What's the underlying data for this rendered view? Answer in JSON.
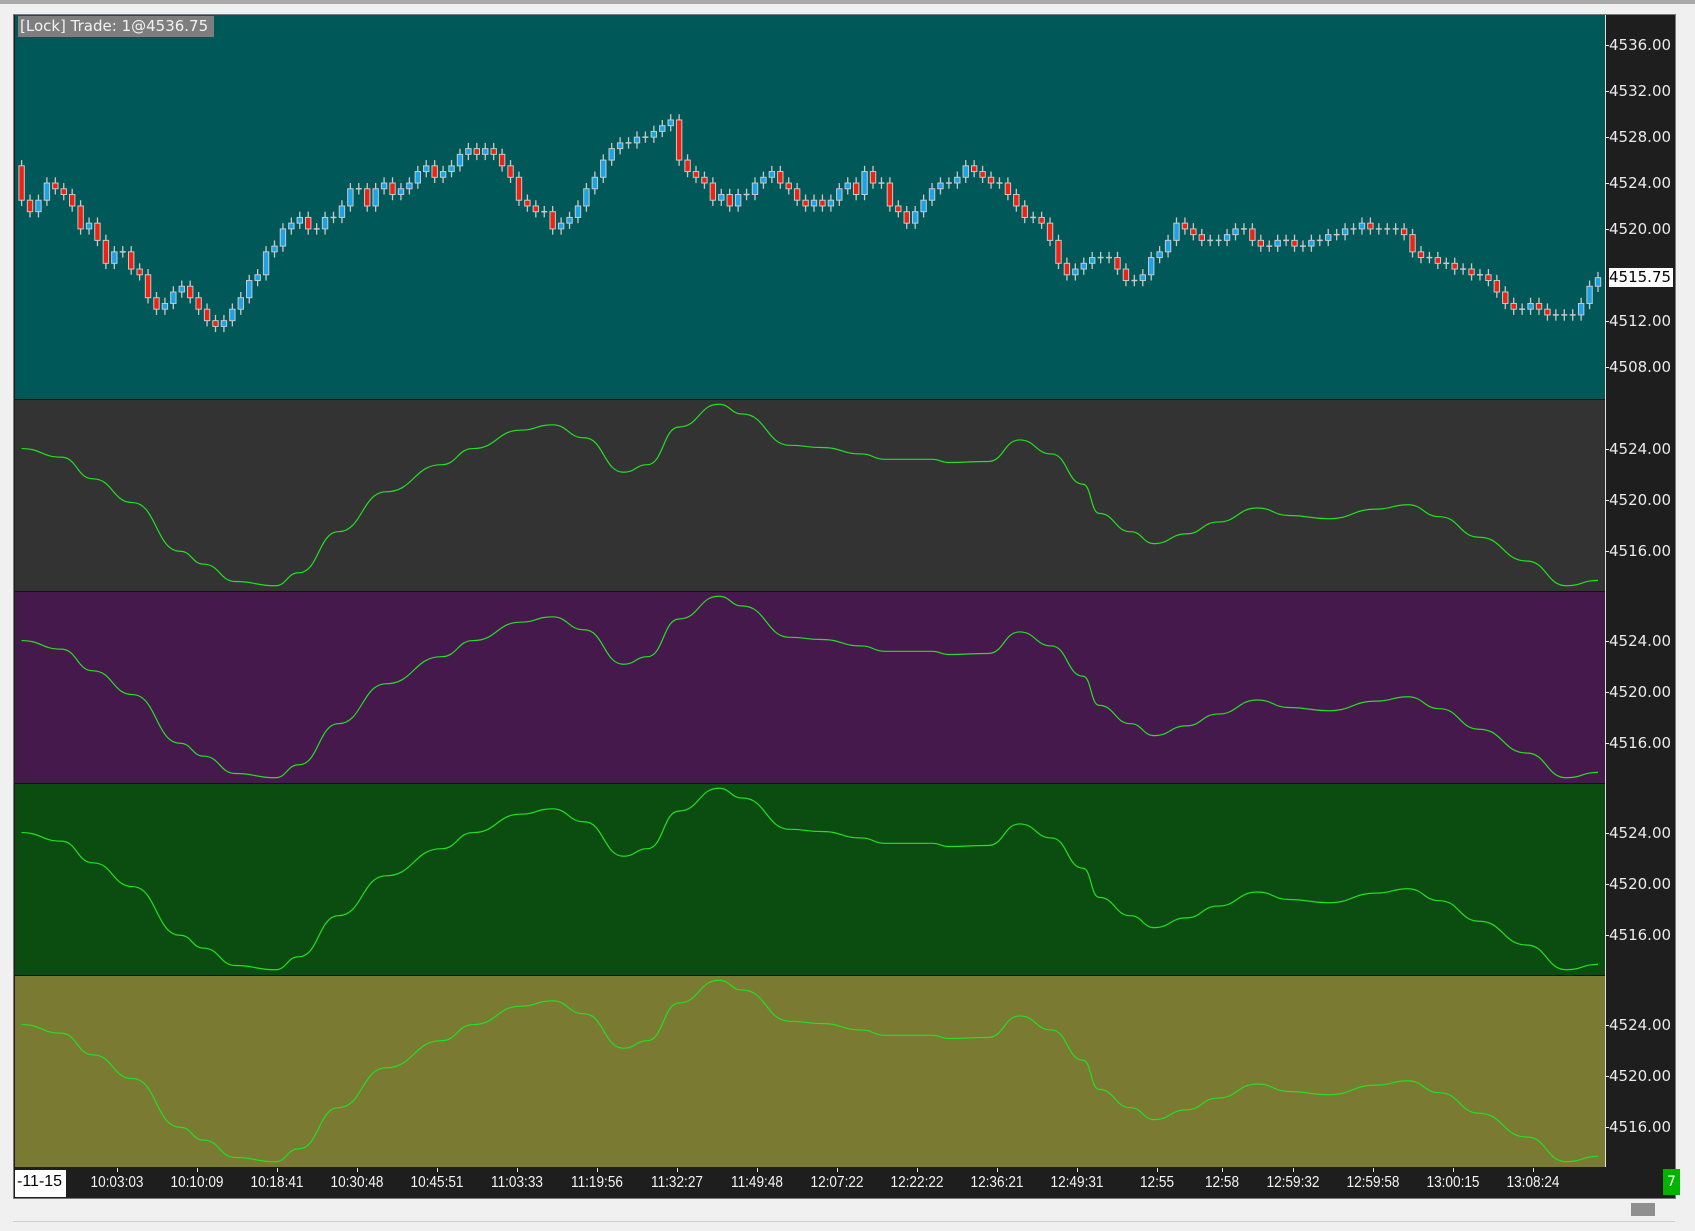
{
  "header": {
    "lock_label": "[Lock] Trade: 1@4536.75"
  },
  "colors": {
    "panel_backgrounds": [
      "#005858",
      "#333333",
      "#46194c",
      "#0b4d10",
      "#7a7a32"
    ],
    "candle_up": "#1aa3e8",
    "candle_down": "#ee2211",
    "candle_outline": "#c8c8c8",
    "indicator_line": "#22e022",
    "bar_count_badge": "#00b400"
  },
  "price_panel": {
    "y_range": [
      4505.17,
      4538.65
    ],
    "y_ticks": [
      "4536.00",
      "4532.00",
      "4528.00",
      "4524.00",
      "4520.00",
      "4512.00",
      "4508.00"
    ],
    "last_price": "4515.75",
    "first_open": 4525.5,
    "closes": [
      4522.5,
      4521.5,
      4522.5,
      4524,
      4523.5,
      4523,
      4522,
      4520,
      4520.5,
      4519,
      4517,
      4518,
      4518,
      4516.5,
      4516,
      4514,
      4513,
      4513.5,
      4514.5,
      4515,
      4514,
      4513,
      4512,
      4511.5,
      4512,
      4513,
      4514,
      4515.5,
      4516,
      4518,
      4518.5,
      4520,
      4520.5,
      4521,
      4520,
      4520,
      4521,
      4521,
      4522,
      4523.5,
      4523.5,
      4522,
      4523.5,
      4524,
      4523,
      4523.5,
      4524,
      4525,
      4525.5,
      4524.5,
      4525,
      4525.5,
      4526.5,
      4527,
      4526.5,
      4527,
      4526.5,
      4525.5,
      4524.5,
      4522.5,
      4522,
      4521.5,
      4521.5,
      4520,
      4520.5,
      4521,
      4522,
      4523.5,
      4524.5,
      4526,
      4527,
      4527.5,
      4527.5,
      4528,
      4528,
      4528.5,
      4529,
      4529.5,
      4526,
      4525,
      4524.5,
      4524,
      4522.5,
      4523,
      4522,
      4523,
      4523,
      4524,
      4524.5,
      4525,
      4524,
      4523.5,
      4522.5,
      4522,
      4522.5,
      4522,
      4522.5,
      4523.5,
      4524,
      4523,
      4525,
      4524,
      4524,
      4522,
      4521.5,
      4520.5,
      4521.5,
      4522.5,
      4523.5,
      4524,
      4524,
      4524.5,
      4525.5,
      4525,
      4524.5,
      4524,
      4524,
      4523,
      4522,
      4521,
      4521,
      4520.5,
      4519,
      4517,
      4516,
      4516.5,
      4517,
      4517.5,
      4517.5,
      4517.5,
      4516.5,
      4515.5,
      4515.5,
      4516,
      4517.5,
      4518,
      4519,
      4520.5,
      4520,
      4519.5,
      4519,
      4519,
      4519,
      4519.5,
      4520,
      4520,
      4519,
      4518.5,
      4518.5,
      4519,
      4519,
      4518.5,
      4518.5,
      4519,
      4519,
      4519.5,
      4519.5,
      4520,
      4520,
      4520.5,
      4520,
      4520,
      4520,
      4520,
      4519.5,
      4518,
      4517.5,
      4517.5,
      4517,
      4517,
      4516.5,
      4516.5,
      4516,
      4516,
      4515.5,
      4514.5,
      4513.5,
      4513,
      4513,
      4513.5,
      4513,
      4512.5,
      4512.5,
      4512.5,
      4512.5,
      4513.5,
      4515,
      4515.75
    ]
  },
  "indicator_panels": {
    "y_range": [
      4512.9,
      4527.86
    ],
    "y_ticks": [
      "4524.00",
      "4520.00",
      "4516.00"
    ],
    "count": 4,
    "line": [
      [
        0,
        4524.0
      ],
      [
        5,
        4523.33
      ],
      [
        9,
        4521.64
      ],
      [
        14,
        4519.79
      ],
      [
        20,
        4516.0
      ],
      [
        23,
        4514.99
      ],
      [
        27,
        4513.64
      ],
      [
        32,
        4513.31
      ],
      [
        35,
        4514.32
      ],
      [
        40,
        4517.52
      ],
      [
        46,
        4520.63
      ],
      [
        53,
        4522.74
      ],
      [
        57,
        4524.0
      ],
      [
        63,
        4525.43
      ],
      [
        67,
        4525.85
      ],
      [
        71,
        4524.84
      ],
      [
        76,
        4522.15
      ],
      [
        79,
        4522.74
      ],
      [
        83,
        4525.68
      ],
      [
        88,
        4527.45
      ],
      [
        91,
        4526.69
      ],
      [
        97,
        4524.25
      ],
      [
        101,
        4524.08
      ],
      [
        106,
        4523.58
      ],
      [
        109,
        4523.16
      ],
      [
        115,
        4523.16
      ],
      [
        117,
        4522.91
      ],
      [
        122,
        4522.99
      ],
      [
        126,
        4524.67
      ],
      [
        130,
        4523.58
      ],
      [
        134,
        4521.22
      ],
      [
        136,
        4518.95
      ],
      [
        140,
        4517.52
      ],
      [
        143,
        4516.59
      ],
      [
        147,
        4517.35
      ],
      [
        151,
        4518.27
      ],
      [
        156,
        4519.37
      ],
      [
        160,
        4518.78
      ],
      [
        165,
        4518.53
      ],
      [
        171,
        4519.28
      ],
      [
        175,
        4519.62
      ],
      [
        179,
        4518.69
      ],
      [
        184,
        4517.09
      ],
      [
        190,
        4515.24
      ],
      [
        195,
        4513.31
      ],
      [
        199,
        4513.73
      ]
    ]
  },
  "time_axis": {
    "first_label": "-11-15",
    "labels": [
      "10:03:03",
      "10:10:09",
      "10:18:41",
      "10:30:48",
      "10:45:51",
      "11:03:33",
      "11:19:56",
      "11:32:27",
      "11:49:48",
      "12:07:22",
      "12:22:22",
      "12:36:21",
      "12:49:31",
      "12:55",
      "12:58",
      "12:59:32",
      "12:59:58",
      "13:00:15",
      "13:08:24"
    ]
  },
  "status": {
    "bar_count_badge": "7"
  }
}
